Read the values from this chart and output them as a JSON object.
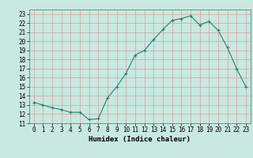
{
  "x": [
    0,
    1,
    2,
    3,
    4,
    5,
    6,
    7,
    8,
    9,
    10,
    11,
    12,
    13,
    14,
    15,
    16,
    17,
    18,
    19,
    20,
    21,
    22,
    23
  ],
  "y": [
    13.3,
    13.0,
    12.7,
    12.5,
    12.2,
    12.2,
    11.4,
    11.5,
    13.8,
    15.0,
    16.5,
    18.5,
    19.0,
    20.2,
    21.3,
    22.3,
    22.5,
    22.8,
    21.8,
    22.2,
    21.2,
    19.3,
    17.0,
    15.0
  ],
  "line_color": "#2e7d6e",
  "marker_color": "#2e7d6e",
  "bg_color": "#c8e8e0",
  "grid_color": "#d4a0a0",
  "xlabel": "Humidex (Indice chaleur)",
  "ylim": [
    11,
    23.5
  ],
  "yticks": [
    11,
    12,
    13,
    14,
    15,
    16,
    17,
    18,
    19,
    20,
    21,
    22,
    23
  ],
  "xticks": [
    0,
    1,
    2,
    3,
    4,
    5,
    6,
    7,
    8,
    9,
    10,
    11,
    12,
    13,
    14,
    15,
    16,
    17,
    18,
    19,
    20,
    21,
    22,
    23
  ],
  "label_fontsize": 6.5,
  "tick_fontsize": 5.5
}
